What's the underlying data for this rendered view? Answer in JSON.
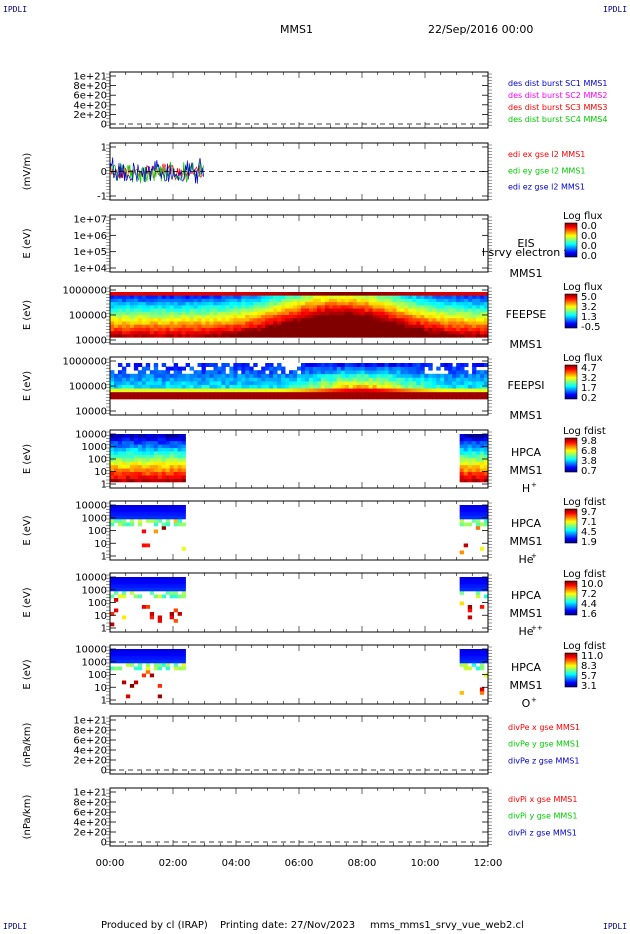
{
  "corner_marks": {
    "tl": "IPDLI",
    "tr": "IPDLI",
    "bl": "IPDLI",
    "br": "IPDLI"
  },
  "header": {
    "spacecraft": "MMS1",
    "date": "22/Sep/2016 00:00"
  },
  "footer": {
    "produced": "Produced by cl (IRAP)",
    "printed": "Printing date: 27/Nov/2023",
    "script": "mms_mms1_srvy_vue_web2.cl"
  },
  "chart_data": [
    {
      "type": "line",
      "id": "p1",
      "yticks": [
        "1e+21",
        "8e+20",
        "6e+20",
        "4e+20",
        "2e+20",
        "0"
      ],
      "ylabel": "",
      "legend": [
        {
          "text": "des dist burst SC1 MMS1",
          "color": "#0000cc"
        },
        {
          "text": "des dist burst SC2 MMS2",
          "color": "#ff00ff"
        },
        {
          "text": "des dist burst SC3 MMS3",
          "color": "#ff0000"
        },
        {
          "text": "des dist burst SC4 MMS4",
          "color": "#00cc00"
        }
      ],
      "zero_line": true
    },
    {
      "type": "line",
      "id": "p2",
      "yticks": [
        "1",
        "0",
        "-1"
      ],
      "ylabel": "(mV/m)",
      "legend": [
        {
          "text": "edi ex gse l2 MMS1",
          "color": "#ff0000"
        },
        {
          "text": "edi ey gse l2 MMS1",
          "color": "#00cc00"
        },
        {
          "text": "edi ez gse l2 MMS1",
          "color": "#0000cc"
        }
      ],
      "series": [
        {
          "name": "edi ex gse l2 MMS1",
          "color": "#ff0000",
          "x_range_hours": [
            0,
            3.0
          ],
          "amplitude": 0.7
        },
        {
          "name": "edi ey gse l2 MMS1",
          "color": "#00cc00",
          "x_range_hours": [
            0,
            3.0
          ],
          "amplitude": 1.1
        },
        {
          "name": "edi ez gse l2 MMS1",
          "color": "#0000cc",
          "x_range_hours": [
            0,
            3.0
          ],
          "amplitude": 1.3
        }
      ],
      "zero_line": true
    },
    {
      "type": "heatmap",
      "id": "p3",
      "yticks": [
        "1e+07",
        "1e+06",
        "1e+05",
        "1e+04"
      ],
      "ylabel": "E (eV)",
      "right_labels": [
        "EIS",
        "MMS1"
      ],
      "overlay_text": "l srvy electron to",
      "colorbar": {
        "title": "Log flux",
        "ticks": [
          "0.0",
          "0.0",
          "0.0",
          "0.0"
        ]
      },
      "empty": true
    },
    {
      "type": "heatmap",
      "id": "p4",
      "yticks": [
        "1000000",
        "100000",
        "10000"
      ],
      "ylabel": "E (eV)",
      "right_labels": [
        "FEEPSE",
        "MMS1"
      ],
      "colorbar": {
        "title": "Log flux",
        "ticks": [
          "5.0",
          "3.2",
          "1.3",
          "-0.5"
        ]
      }
    },
    {
      "type": "heatmap",
      "id": "p5",
      "yticks": [
        "1000000",
        "100000",
        "10000"
      ],
      "ylabel": "E (eV)",
      "right_labels": [
        "FEEPSI",
        "MMS1"
      ],
      "colorbar": {
        "title": "Log flux",
        "ticks": [
          "4.7",
          "3.2",
          "1.7",
          "0.2"
        ]
      }
    },
    {
      "type": "heatmap",
      "id": "p6",
      "yticks": [
        "10000",
        "1000",
        "100",
        "10",
        "1"
      ],
      "ylabel": "E (eV)",
      "right_labels": [
        "HPCA",
        "MMS1",
        "H"
      ],
      "species_sup": "+",
      "colorbar": {
        "title": "Log fdist",
        "ticks": [
          "9.8",
          "6.8",
          "3.8",
          "0.7"
        ]
      },
      "data_intervals_hours": [
        [
          0,
          2.4
        ],
        [
          11.1,
          12.0
        ]
      ]
    },
    {
      "type": "heatmap",
      "id": "p7",
      "yticks": [
        "10000",
        "1000",
        "100",
        "10",
        "1"
      ],
      "ylabel": "E (eV)",
      "right_labels": [
        "HPCA",
        "MMS1",
        "He"
      ],
      "species_sup": "+",
      "colorbar": {
        "title": "Log fdist",
        "ticks": [
          "9.7",
          "7.1",
          "4.5",
          "1.9"
        ]
      },
      "data_intervals_hours": [
        [
          0,
          2.4
        ],
        [
          11.1,
          12.0
        ]
      ]
    },
    {
      "type": "heatmap",
      "id": "p8",
      "yticks": [
        "10000",
        "1000",
        "100",
        "10",
        "1"
      ],
      "ylabel": "E (eV)",
      "right_labels": [
        "HPCA",
        "MMS1",
        "He"
      ],
      "species_sup": "++",
      "colorbar": {
        "title": "Log fdist",
        "ticks": [
          "10.0",
          "7.2",
          "4.4",
          "1.6"
        ]
      },
      "data_intervals_hours": [
        [
          0,
          2.4
        ],
        [
          11.1,
          12.0
        ]
      ]
    },
    {
      "type": "heatmap",
      "id": "p9",
      "yticks": [
        "10000",
        "1000",
        "100",
        "10",
        "1"
      ],
      "ylabel": "E (eV)",
      "right_labels": [
        "HPCA",
        "MMS1",
        "O"
      ],
      "species_sup": "+",
      "colorbar": {
        "title": "Log fdist",
        "ticks": [
          "11.0",
          "8.3",
          "5.7",
          "3.1"
        ]
      },
      "data_intervals_hours": [
        [
          0,
          2.4
        ],
        [
          11.1,
          12.0
        ]
      ]
    },
    {
      "type": "line",
      "id": "p10",
      "yticks": [
        "1e+21",
        "8e+20",
        "6e+20",
        "4e+20",
        "2e+20",
        "0"
      ],
      "ylabel": "(nPa/km)",
      "legend": [
        {
          "text": "divPe x gse MMS1",
          "color": "#ff0000"
        },
        {
          "text": "divPe y gse MMS1",
          "color": "#00cc00"
        },
        {
          "text": "divPe z gse MMS1",
          "color": "#0000cc"
        }
      ],
      "zero_line": true
    },
    {
      "type": "line",
      "id": "p11",
      "yticks": [
        "1e+21",
        "8e+20",
        "6e+20",
        "4e+20",
        "2e+20",
        "0"
      ],
      "ylabel": "(nPa/km)",
      "legend": [
        {
          "text": "divPi x gse MMS1",
          "color": "#ff0000"
        },
        {
          "text": "divPi y gse MMS1",
          "color": "#00cc00"
        },
        {
          "text": "divPi z gse MMS1",
          "color": "#0000cc"
        }
      ],
      "zero_line": true
    }
  ],
  "time_axis": {
    "range_hours": [
      0,
      12
    ],
    "ticks": [
      "00:00",
      "02:00",
      "04:00",
      "06:00",
      "08:00",
      "10:00",
      "12:00"
    ]
  }
}
